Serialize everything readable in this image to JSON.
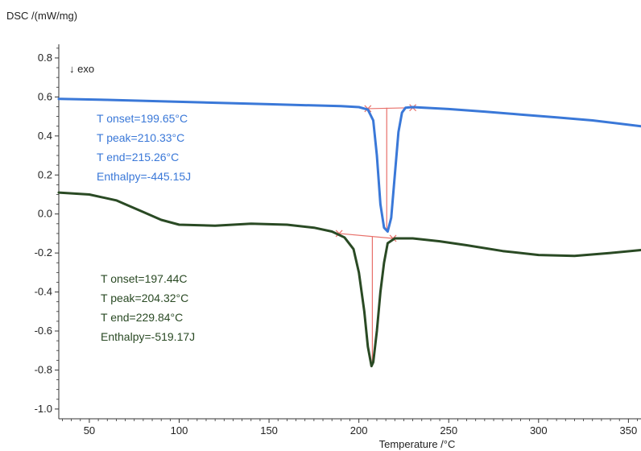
{
  "chart_data": {
    "type": "line",
    "xlabel": "Temperature /°C",
    "ylabel": "DSC /(mW/mg)",
    "direction_label": "↓ exo",
    "xlim": [
      33,
      357
    ],
    "ylim": [
      -1.05,
      0.87
    ],
    "x_ticks": [
      50,
      100,
      150,
      200,
      250,
      300,
      350
    ],
    "y_ticks": [
      0.8,
      0.6,
      0.4,
      0.2,
      0.0,
      -0.2,
      -0.4,
      -0.6,
      -0.8,
      -1.0
    ],
    "y_tick_labels": [
      "0.8",
      "0.6",
      "0.4",
      "0.2",
      "0.0",
      "-0.2",
      "-0.4",
      "-0.6",
      "-0.8",
      "-1.0"
    ],
    "grid": false,
    "series": [
      {
        "color": "#3a78d8",
        "points": [
          [
            33,
            0.59
          ],
          [
            60,
            0.585
          ],
          [
            100,
            0.575
          ],
          [
            150,
            0.563
          ],
          [
            190,
            0.553
          ],
          [
            200,
            0.548
          ],
          [
            205,
            0.535
          ],
          [
            208,
            0.48
          ],
          [
            210,
            0.3
          ],
          [
            212,
            0.05
          ],
          [
            214,
            -0.07
          ],
          [
            216,
            -0.09
          ],
          [
            218,
            -0.02
          ],
          [
            220,
            0.2
          ],
          [
            222,
            0.42
          ],
          [
            224,
            0.52
          ],
          [
            226,
            0.545
          ],
          [
            230,
            0.548
          ],
          [
            250,
            0.538
          ],
          [
            270,
            0.525
          ],
          [
            290,
            0.51
          ],
          [
            310,
            0.495
          ],
          [
            330,
            0.48
          ],
          [
            357,
            0.45
          ]
        ]
      },
      {
        "color": "#2a4a24",
        "points": [
          [
            33,
            0.11
          ],
          [
            50,
            0.1
          ],
          [
            65,
            0.07
          ],
          [
            80,
            0.01
          ],
          [
            90,
            -0.03
          ],
          [
            100,
            -0.055
          ],
          [
            120,
            -0.06
          ],
          [
            140,
            -0.05
          ],
          [
            160,
            -0.055
          ],
          [
            175,
            -0.07
          ],
          [
            185,
            -0.09
          ],
          [
            192,
            -0.12
          ],
          [
            197,
            -0.18
          ],
          [
            200,
            -0.3
          ],
          [
            203,
            -0.5
          ],
          [
            205,
            -0.68
          ],
          [
            207,
            -0.78
          ],
          [
            208,
            -0.76
          ],
          [
            210,
            -0.6
          ],
          [
            212,
            -0.4
          ],
          [
            214,
            -0.25
          ],
          [
            216,
            -0.15
          ],
          [
            220,
            -0.125
          ],
          [
            230,
            -0.125
          ],
          [
            245,
            -0.14
          ],
          [
            260,
            -0.16
          ],
          [
            280,
            -0.19
          ],
          [
            300,
            -0.21
          ],
          [
            320,
            -0.215
          ],
          [
            340,
            -0.2
          ],
          [
            357,
            -0.185
          ]
        ]
      }
    ],
    "construction_lines": {
      "color": "#e8706a",
      "segments": [
        [
          [
            205,
            0.54
          ],
          [
            230,
            0.545
          ]
        ],
        [
          [
            215.5,
            0.545
          ],
          [
            215.5,
            -0.09
          ]
        ],
        [
          [
            189,
            -0.1
          ],
          [
            219,
            -0.125
          ]
        ],
        [
          [
            207.5,
            -0.115
          ],
          [
            207.5,
            -0.78
          ]
        ]
      ],
      "markers": [
        [
          205,
          0.54
        ],
        [
          230,
          0.545
        ],
        [
          189,
          -0.1
        ],
        [
          219,
          -0.125
        ]
      ]
    },
    "annotations": [
      {
        "color": "#3a78d8",
        "lines": [
          "T onset=199.65°C",
          "T peak=210.33°C",
          "T end=215.26°C",
          "Enthalpy=-445.15J"
        ]
      },
      {
        "color": "#2a4a24",
        "lines": [
          "T onset=197.44C",
          "T peak=204.32°C",
          "T end=229.84°C",
          "Enthalpy=-519.17J"
        ]
      }
    ]
  }
}
